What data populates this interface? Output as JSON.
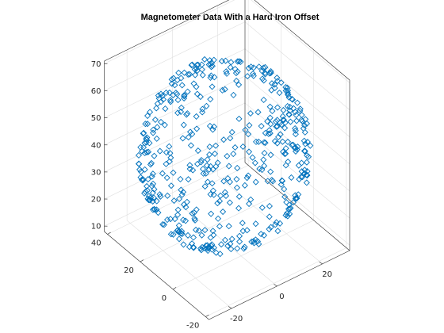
{
  "chart_data": {
    "type": "scatter",
    "projection": "3d",
    "title": "Magnetometer Data With a Hard Iron Offset",
    "xlabel": "",
    "ylabel": "",
    "zlabel": "",
    "xlim": [
      -30,
      32
    ],
    "ylim": [
      -22,
      42
    ],
    "zlim": [
      8,
      71
    ],
    "x_ticks": [
      "-20",
      "0",
      "20"
    ],
    "y_ticks": [
      "-20",
      "0",
      "20",
      "40"
    ],
    "z_ticks": [
      "10",
      "20",
      "30",
      "40",
      "50",
      "60",
      "70"
    ],
    "grid": true,
    "legend": "none",
    "marker": "diamond",
    "marker_color": "#0072bd",
    "center": [
      0,
      10,
      40
    ],
    "radius": 30,
    "point_count": 500,
    "point_distribution": "uniformly scattered over the surface of a sphere"
  }
}
